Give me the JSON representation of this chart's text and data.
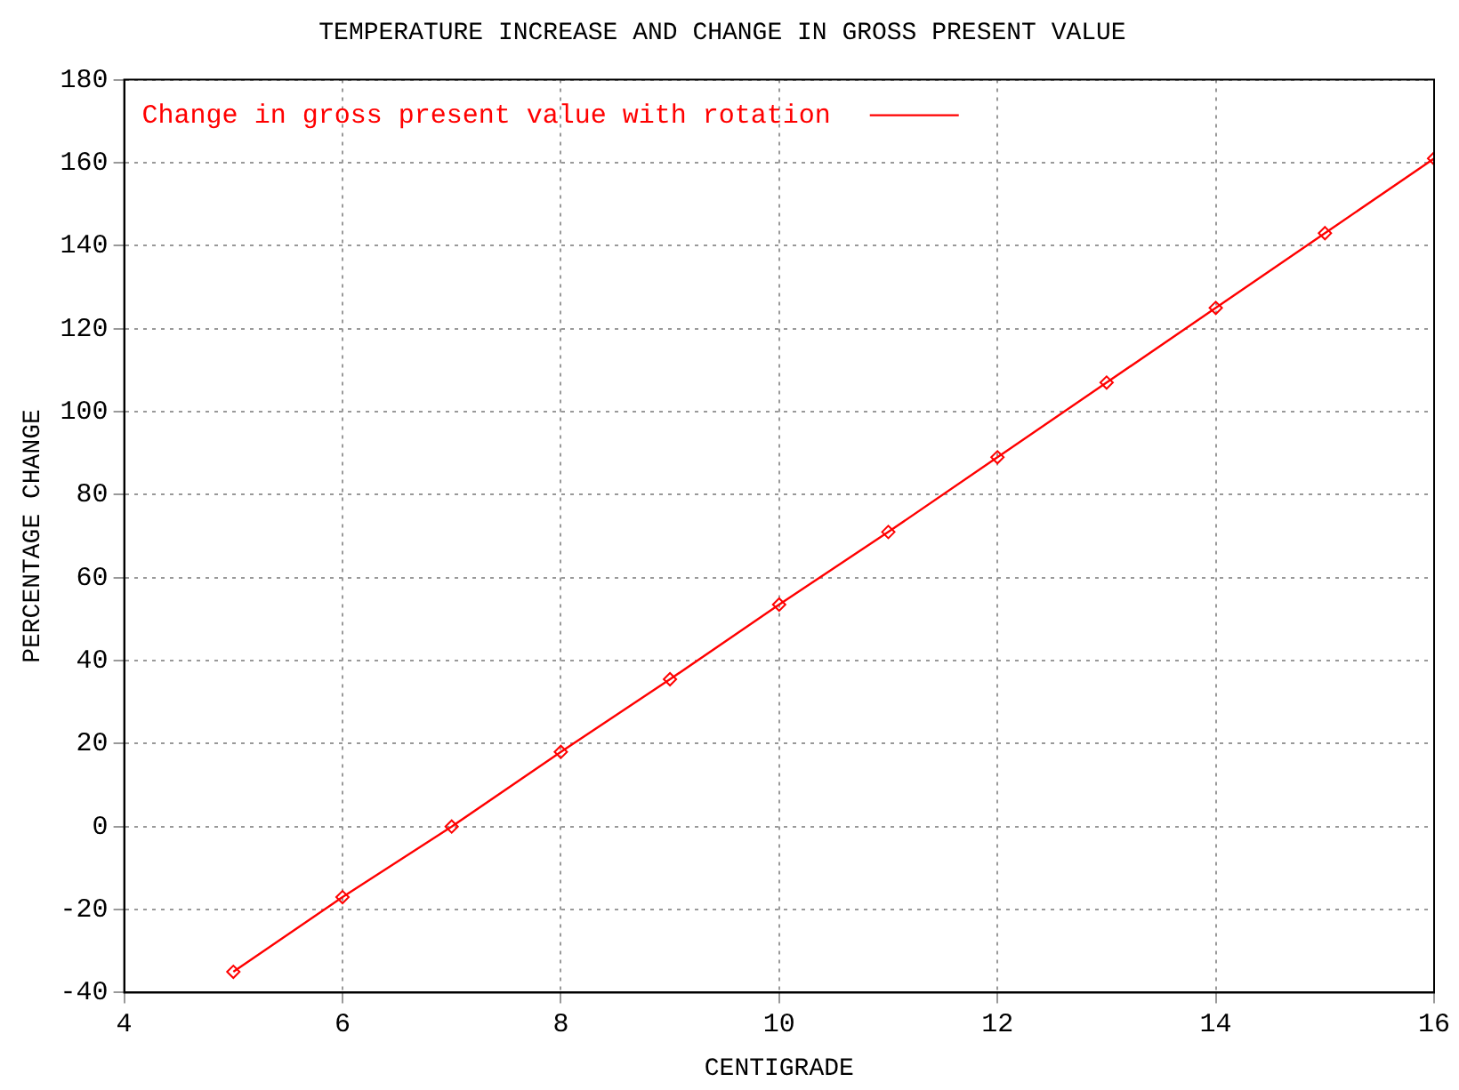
{
  "chart_data": {
    "type": "line",
    "title": "TEMPERATURE INCREASE AND CHANGE IN GROSS PRESENT VALUE",
    "xlabel": "CENTIGRADE",
    "ylabel": "PERCENTAGE CHANGE",
    "x": [
      5,
      6,
      7,
      8,
      9,
      10,
      11,
      12,
      13,
      14,
      15,
      16
    ],
    "series": [
      {
        "name": "Change in gross present value with rotation",
        "color": "#ff0000",
        "values": [
          -35,
          -17,
          0,
          18,
          35.5,
          53.5,
          71,
          89,
          107,
          125,
          143,
          161
        ]
      }
    ],
    "xlim": [
      4,
      16
    ],
    "xticks": [
      4,
      6,
      8,
      10,
      12,
      14,
      16
    ],
    "ylim": [
      -40,
      180
    ],
    "yticks": [
      -40,
      -20,
      0,
      20,
      40,
      60,
      80,
      100,
      120,
      140,
      160,
      180
    ],
    "grid": true,
    "legend": "top left",
    "marker": "diamond",
    "line_style": "solid"
  }
}
